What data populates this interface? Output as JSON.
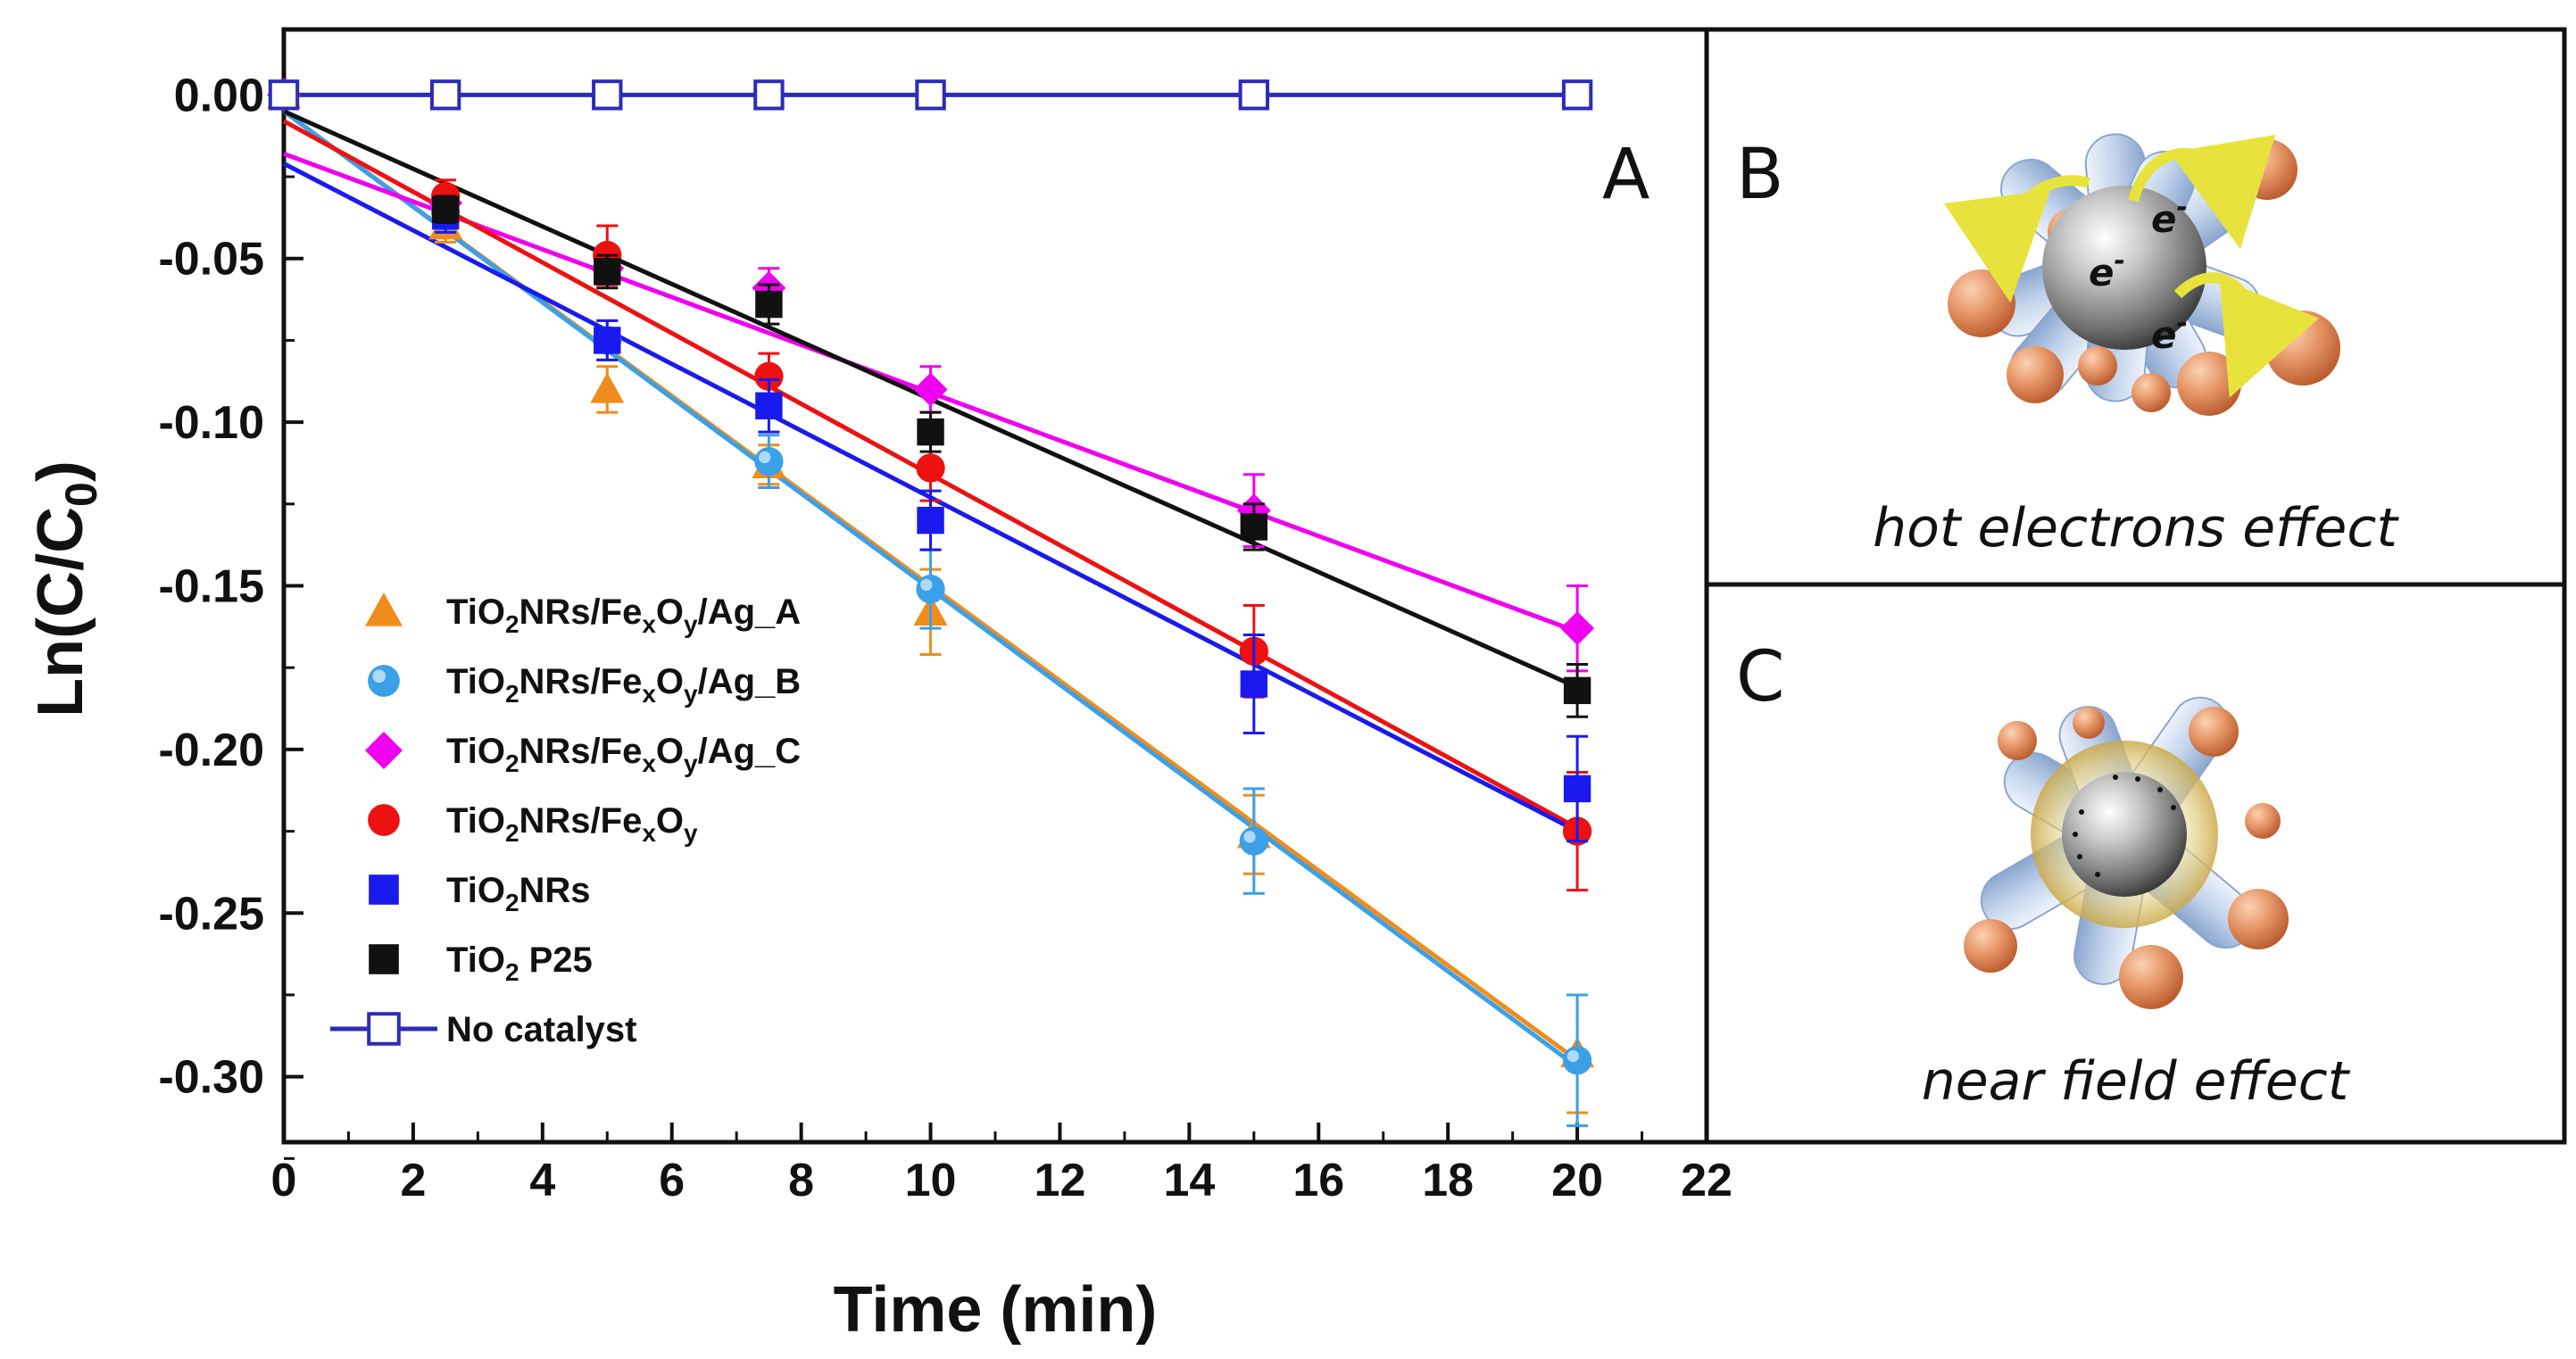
{
  "chart_data": {
    "type": "scatter",
    "panel_label": "A",
    "xlabel": "Time (min)",
    "ylabel_main": "Ln(C/C",
    "ylabel_sub": "0",
    "ylabel_close": ")",
    "xlim": [
      0,
      22
    ],
    "ylim": [
      -0.32,
      0.02
    ],
    "xticks": [
      0,
      2,
      4,
      6,
      8,
      10,
      12,
      14,
      16,
      18,
      20,
      22
    ],
    "xtick_labels": [
      "0",
      "2",
      "4",
      "6",
      "8",
      "10",
      "12",
      "14",
      "16",
      "18",
      "20",
      "22"
    ],
    "yticks": [
      0.0,
      -0.05,
      -0.1,
      -0.15,
      -0.2,
      -0.25,
      -0.3
    ],
    "ytick_labels": [
      "0.00",
      "-0.05",
      "-0.10",
      "-0.15",
      "-0.20",
      "-0.25",
      "-0.30"
    ],
    "series": [
      {
        "name": "TiO2NRs/FexOy/Ag_A",
        "legend_label": "TiO₂NRs/FeₓOᵧ/Ag_A",
        "color": "#f08c1c",
        "marker": "triangle",
        "x": [
          0,
          2.5,
          5,
          7.5,
          10,
          15,
          20
        ],
        "y": [
          0.0,
          -0.04,
          -0.09,
          -0.113,
          -0.158,
          -0.226,
          -0.293
        ],
        "err": [
          0,
          0.005,
          0.007,
          0.006,
          0.013,
          0.012,
          0.018
        ],
        "fit": [
          -0.005,
          -0.0145
        ]
      },
      {
        "name": "TiO2NRs/FexOy/Ag_B",
        "legend_label": "TiO₂NRs/FeₓOᵧ/Ag_B",
        "color": "#3aa0e8",
        "marker": "sphere",
        "x": [
          0,
          2.5,
          5,
          7.5,
          10,
          15,
          20
        ],
        "y": [
          0.0,
          -0.036,
          -0.075,
          -0.112,
          -0.151,
          -0.228,
          -0.295
        ],
        "err": [
          0,
          0.005,
          0.006,
          0.008,
          0.012,
          0.016,
          0.02
        ],
        "fit": [
          -0.005,
          -0.0146
        ]
      },
      {
        "name": "TiO2NRs/FexOy/Ag_C",
        "legend_label": "TiO₂NRs/FeₓOᵧ/Ag_C",
        "color": "#f000f0",
        "marker": "diamond",
        "x": [
          0,
          2.5,
          5,
          7.5,
          10,
          15,
          20
        ],
        "y": [
          0.0,
          -0.033,
          -0.053,
          -0.059,
          -0.09,
          -0.127,
          -0.163
        ],
        "err": [
          0,
          0.004,
          0.005,
          0.006,
          0.007,
          0.011,
          0.013
        ],
        "fit": [
          -0.018,
          -0.0073
        ]
      },
      {
        "name": "TiO2NRs/FexOy",
        "legend_label": "TiO₂NRs/FeₓOᵧ",
        "color": "#ee1111",
        "marker": "circle",
        "x": [
          0,
          2.5,
          5,
          7.5,
          10,
          15,
          20
        ],
        "y": [
          0.0,
          -0.031,
          -0.049,
          -0.086,
          -0.114,
          -0.17,
          -0.225
        ],
        "err": [
          0,
          0.005,
          0.009,
          0.007,
          0.01,
          0.014,
          0.018
        ],
        "fit": [
          -0.008,
          -0.0108
        ]
      },
      {
        "name": "TiO2NRs",
        "legend_label": "TiO₂NRs",
        "color": "#1a1aee",
        "marker": "square",
        "x": [
          0,
          2.5,
          5,
          7.5,
          10,
          15,
          20
        ],
        "y": [
          0.0,
          -0.037,
          -0.075,
          -0.095,
          -0.13,
          -0.18,
          -0.212
        ],
        "err": [
          0,
          0.005,
          0.006,
          0.008,
          0.009,
          0.015,
          0.016
        ],
        "fit": [
          -0.021,
          -0.0102
        ]
      },
      {
        "name": "TiO2 P25",
        "legend_label": "TiO₂ P25",
        "color": "#111111",
        "marker": "square",
        "x": [
          0,
          2.5,
          5,
          7.5,
          10,
          15,
          20
        ],
        "y": [
          0.0,
          -0.035,
          -0.054,
          -0.064,
          -0.103,
          -0.132,
          -0.182
        ],
        "err": [
          0,
          0.004,
          0.005,
          0.006,
          0.006,
          0.007,
          0.008
        ],
        "fit": [
          -0.005,
          -0.0088
        ]
      },
      {
        "name": "No catalyst",
        "legend_label": "No catalyst",
        "color": "#2c2cb8",
        "marker": "open-square",
        "x": [
          0,
          2.5,
          5,
          7.5,
          10,
          15,
          20
        ],
        "y": [
          0,
          0,
          0,
          0,
          0,
          0,
          0
        ],
        "err": [
          0,
          0,
          0,
          0,
          0,
          0,
          0
        ],
        "connected": true
      }
    ]
  },
  "legend": [
    {
      "base": "TiO",
      "s1": "2",
      "m1": "NRs/Fe",
      "s2": "x",
      "m2": "O",
      "s3": "y",
      "tail": "/Ag_A"
    },
    {
      "base": "TiO",
      "s1": "2",
      "m1": "NRs/Fe",
      "s2": "x",
      "m2": "O",
      "s3": "y",
      "tail": "/Ag_B"
    },
    {
      "base": "TiO",
      "s1": "2",
      "m1": "NRs/Fe",
      "s2": "x",
      "m2": "O",
      "s3": "y",
      "tail": "/Ag_C"
    },
    {
      "base": "TiO",
      "s1": "2",
      "m1": "NRs/Fe",
      "s2": "x",
      "m2": "O",
      "s3": "y",
      "tail": ""
    },
    {
      "base": "TiO",
      "s1": "2",
      "m1": "NRs",
      "s2": "",
      "m2": "",
      "s3": "",
      "tail": ""
    },
    {
      "base": "TiO",
      "s1": "2",
      "m1": " P25",
      "s2": "",
      "m2": "",
      "s3": "",
      "tail": ""
    },
    {
      "base": "No catalyst",
      "s1": "",
      "m1": "",
      "s2": "",
      "m2": "",
      "s3": "",
      "tail": ""
    }
  ],
  "panel_b": {
    "label": "B",
    "caption": "hot electrons effect",
    "electron": "e",
    "charge": "-"
  },
  "panel_c": {
    "label": "C",
    "caption": "near field effect"
  }
}
